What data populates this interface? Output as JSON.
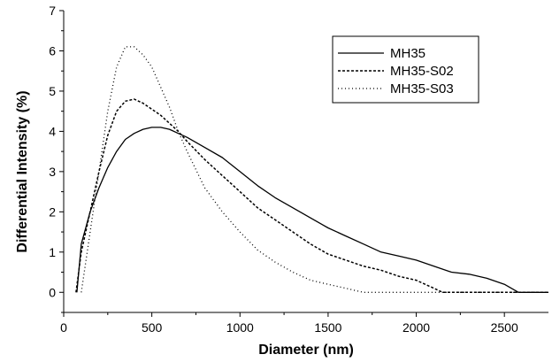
{
  "chart_data": {
    "type": "line",
    "title": "",
    "xlabel": "Diameter (nm)",
    "ylabel": "Differential Intensity (%)",
    "xlim": [
      0,
      2750
    ],
    "ylim": [
      -0.5,
      7
    ],
    "xticks": [
      0,
      500,
      1000,
      1500,
      2000,
      2500
    ],
    "xtick_labels": [
      "0",
      "500",
      "1000",
      "1500",
      "2000",
      "2500"
    ],
    "yticks": [
      0,
      1,
      2,
      3,
      4,
      5,
      6,
      7
    ],
    "ytick_labels": [
      "0",
      "1",
      "2",
      "3",
      "4",
      "5",
      "6",
      "7"
    ],
    "grid": false,
    "legend_position": "top-right",
    "series": [
      {
        "name": "MH35",
        "style": "solid",
        "color": "#000000",
        "points": [
          [
            75,
            0
          ],
          [
            100,
            1.2
          ],
          [
            150,
            2.0
          ],
          [
            200,
            2.6
          ],
          [
            250,
            3.1
          ],
          [
            300,
            3.5
          ],
          [
            350,
            3.8
          ],
          [
            400,
            3.95
          ],
          [
            450,
            4.05
          ],
          [
            500,
            4.1
          ],
          [
            550,
            4.1
          ],
          [
            600,
            4.05
          ],
          [
            650,
            3.95
          ],
          [
            700,
            3.85
          ],
          [
            800,
            3.6
          ],
          [
            900,
            3.35
          ],
          [
            1000,
            3.0
          ],
          [
            1100,
            2.65
          ],
          [
            1200,
            2.35
          ],
          [
            1300,
            2.1
          ],
          [
            1400,
            1.85
          ],
          [
            1500,
            1.6
          ],
          [
            1600,
            1.4
          ],
          [
            1700,
            1.2
          ],
          [
            1800,
            1.0
          ],
          [
            1900,
            0.9
          ],
          [
            2000,
            0.8
          ],
          [
            2100,
            0.65
          ],
          [
            2200,
            0.5
          ],
          [
            2300,
            0.45
          ],
          [
            2400,
            0.35
          ],
          [
            2500,
            0.2
          ],
          [
            2580,
            0.0
          ],
          [
            2750,
            0.0
          ]
        ]
      },
      {
        "name": "MH35-S02",
        "style": "dashed",
        "color": "#000000",
        "points": [
          [
            70,
            0
          ],
          [
            100,
            1.0
          ],
          [
            150,
            2.0
          ],
          [
            200,
            3.0
          ],
          [
            250,
            3.9
          ],
          [
            300,
            4.5
          ],
          [
            350,
            4.75
          ],
          [
            400,
            4.8
          ],
          [
            450,
            4.7
          ],
          [
            500,
            4.55
          ],
          [
            550,
            4.4
          ],
          [
            600,
            4.2
          ],
          [
            650,
            4.0
          ],
          [
            700,
            3.75
          ],
          [
            800,
            3.3
          ],
          [
            900,
            2.9
          ],
          [
            1000,
            2.5
          ],
          [
            1100,
            2.1
          ],
          [
            1200,
            1.8
          ],
          [
            1300,
            1.5
          ],
          [
            1400,
            1.2
          ],
          [
            1500,
            0.95
          ],
          [
            1600,
            0.8
          ],
          [
            1700,
            0.65
          ],
          [
            1800,
            0.55
          ],
          [
            1900,
            0.4
          ],
          [
            2000,
            0.3
          ],
          [
            2100,
            0.1
          ],
          [
            2150,
            0.0
          ],
          [
            2750,
            0.0
          ]
        ]
      },
      {
        "name": "MH35-S03",
        "style": "dotted",
        "color": "#000000",
        "points": [
          [
            100,
            0
          ],
          [
            150,
            1.5
          ],
          [
            200,
            3.0
          ],
          [
            250,
            4.5
          ],
          [
            300,
            5.6
          ],
          [
            350,
            6.1
          ],
          [
            400,
            6.1
          ],
          [
            450,
            5.9
          ],
          [
            500,
            5.6
          ],
          [
            550,
            5.1
          ],
          [
            600,
            4.6
          ],
          [
            650,
            4.0
          ],
          [
            700,
            3.5
          ],
          [
            800,
            2.6
          ],
          [
            900,
            2.0
          ],
          [
            1000,
            1.5
          ],
          [
            1100,
            1.05
          ],
          [
            1200,
            0.75
          ],
          [
            1300,
            0.5
          ],
          [
            1400,
            0.3
          ],
          [
            1500,
            0.2
          ],
          [
            1600,
            0.1
          ],
          [
            1700,
            0.0
          ],
          [
            2750,
            0.0
          ]
        ]
      }
    ]
  }
}
